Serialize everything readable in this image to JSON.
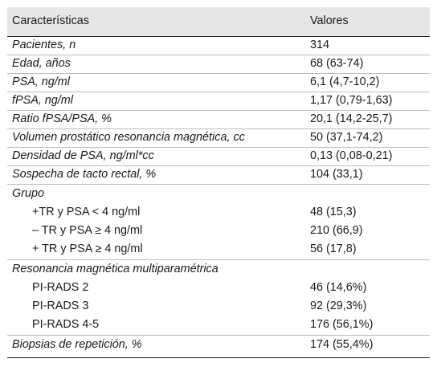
{
  "header": {
    "col1": "Características",
    "col2": "Valores"
  },
  "rows": [
    {
      "label": "Pacientes, n",
      "value": "314"
    },
    {
      "label": "Edad, años",
      "value": "68 (63-74)"
    },
    {
      "label": "PSA, ng/ml",
      "value": "6,1 (4,7-10,2)"
    },
    {
      "label": "fPSA, ng/ml",
      "value": "1,17 (0,79-1,63)"
    },
    {
      "label": "Ratio fPSA/PSA, %",
      "value": "20,1 (14,2-25,7)"
    },
    {
      "label": "Volumen prostático resonancia magnética, cc",
      "value": "50 (37,1-74,2)"
    },
    {
      "label": "Densidad de PSA, ng/ml*cc",
      "value": "0,13 (0,08-0,21)"
    },
    {
      "label": "Sospecha de tacto rectal, %",
      "value": "104 (33,1)"
    },
    {
      "label": "Grupo",
      "value": ""
    },
    {
      "label": "+TR y PSA < 4 ng/ml",
      "value": "48 (15,3)"
    },
    {
      "label": "– TR y PSA ≥ 4 ng/ml",
      "value": "210 (66,9)"
    },
    {
      "label": "+ TR y PSA ≥ 4 ng/ml",
      "value": "56 (17,8)"
    },
    {
      "label": "Resonancia magnética multiparamétrica",
      "value": ""
    },
    {
      "label": "PI-RADS 2",
      "value": "46 (14,6%)"
    },
    {
      "label": "PI-RADS 3",
      "value": "92 (29,3%)"
    },
    {
      "label": "PI-RADS 4-5",
      "value": "176 (56,1%)"
    },
    {
      "label": "Biopsias de repetición, %",
      "value": "174 (55,4%)"
    }
  ]
}
